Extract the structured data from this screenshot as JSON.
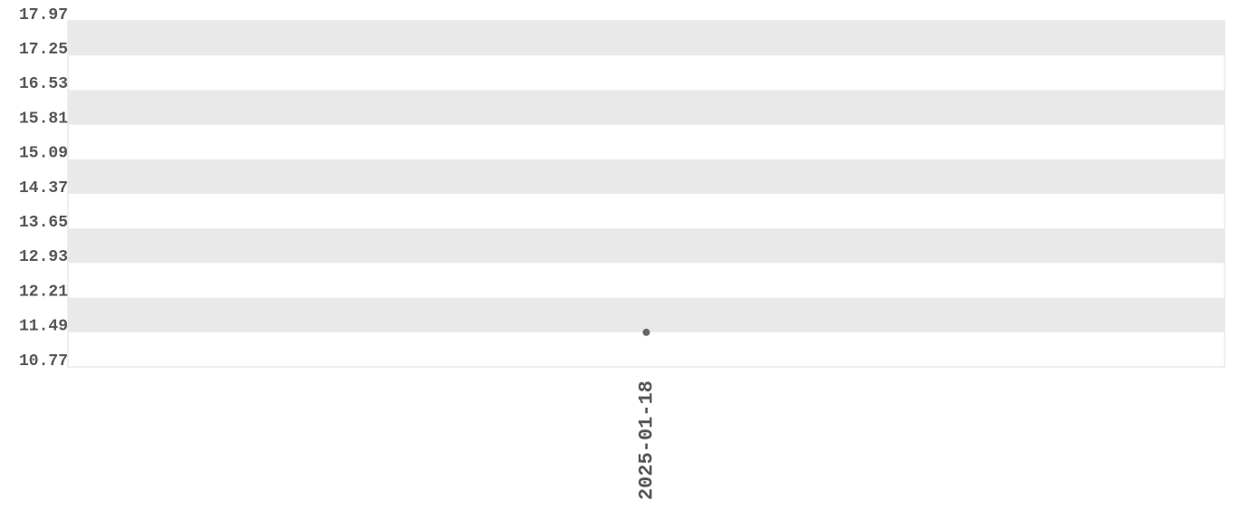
{
  "chart_data": {
    "type": "line",
    "categories": [
      "2025-01-18"
    ],
    "series": [
      {
        "values": [
          11.49
        ],
        "color": "#666666"
      }
    ],
    "ylim": [
      10.77,
      17.97
    ],
    "yticks": [
      10.77,
      11.49,
      12.21,
      12.93,
      13.65,
      14.37,
      15.09,
      15.81,
      16.53,
      17.25,
      17.97
    ],
    "band_color": "#e9e9e9"
  }
}
